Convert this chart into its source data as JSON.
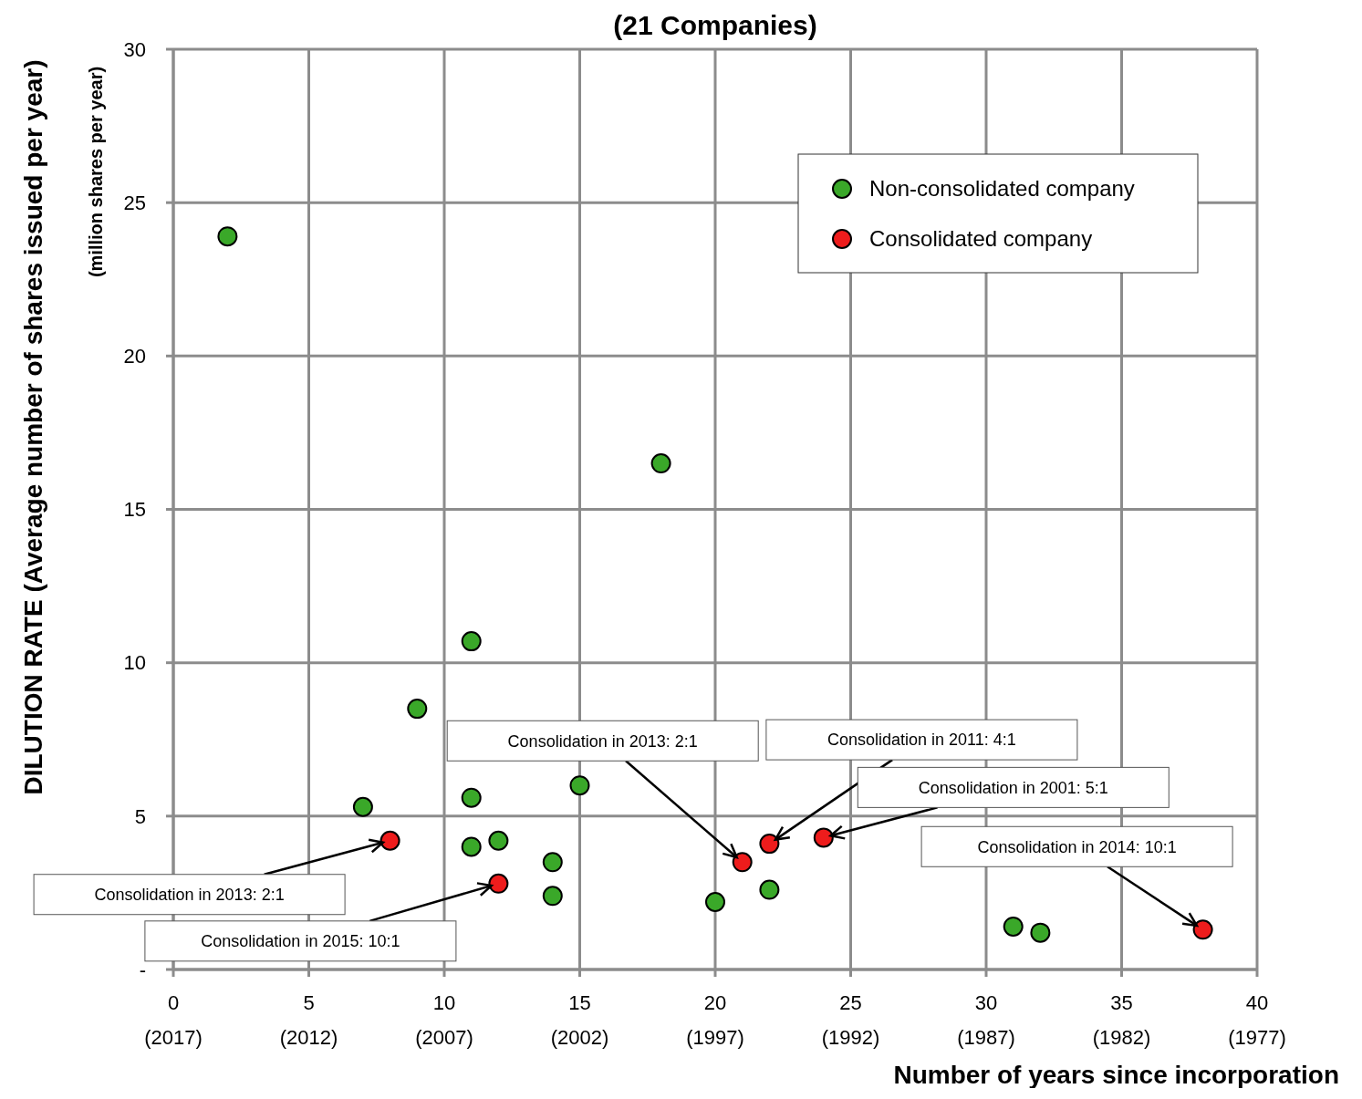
{
  "chart_data": {
    "type": "scatter",
    "title": "(21 Companies)",
    "xlabel": "Number of years since incorporation",
    "ylabel": "DILUTION RATE (Average number of shares issued per year)\n(million shares per year)",
    "xlim": [
      0,
      40
    ],
    "xticks": [
      0,
      5,
      10,
      15,
      20,
      25,
      30,
      35,
      40
    ],
    "x2lim": [
      2017,
      1977
    ],
    "x2ticks": [
      {
        "value": 2017,
        "label": "(2017)"
      },
      {
        "value": 2012,
        "label": "(2012)"
      },
      {
        "value": 2007,
        "label": "(2007)"
      },
      {
        "value": 2002,
        "label": "(2002)"
      },
      {
        "value": 1997,
        "label": "(1997)"
      },
      {
        "value": 1992,
        "label": "(1992)"
      },
      {
        "value": 1987,
        "label": "(1987)"
      },
      {
        "value": 1982,
        "label": "(1982)"
      },
      {
        "value": 1977,
        "label": "(1977)"
      }
    ],
    "ylim": [
      0,
      30
    ],
    "yticks": [
      {
        "value": 0,
        "label": "-"
      },
      5,
      10,
      15,
      20,
      25,
      30
    ],
    "grid": true,
    "legend": "top right",
    "marker": "circle",
    "series": [
      {
        "name": "Non-consolidated company",
        "color": "#3aa829",
        "x": [
          2,
          18,
          11,
          9,
          7,
          11,
          15,
          11,
          12,
          14,
          14,
          20,
          22,
          31,
          32
        ],
        "values": [
          23.9,
          16.5,
          10.7,
          8.5,
          5.3,
          5.6,
          6.0,
          4.0,
          4.2,
          3.5,
          2.4,
          2.2,
          2.6,
          1.4,
          1.2
        ]
      },
      {
        "name": "Consolidated company",
        "color": "#ee1c1c",
        "x": [
          8,
          12,
          21,
          22,
          24,
          38
        ],
        "values": [
          4.2,
          2.8,
          3.5,
          4.1,
          4.3,
          1.3
        ]
      }
    ],
    "annotations": [
      {
        "text": "Consolidation in 2013:  2:1",
        "x": 8,
        "y": 4.2
      },
      {
        "text": "Consolidation in 2015:  10:1",
        "x": 12,
        "y": 2.8
      },
      {
        "text": "Consolidation in 2013:  2:1",
        "x": 21,
        "y": 3.5
      },
      {
        "text": "Consolidation in 2011:  4:1",
        "x": 22,
        "y": 4.1
      },
      {
        "text": "Consolidation in 2001:  5:1",
        "x": 24,
        "y": 4.3
      },
      {
        "text": "Consolidation in 2014:  10:1",
        "x": 38,
        "y": 1.3
      }
    ]
  }
}
